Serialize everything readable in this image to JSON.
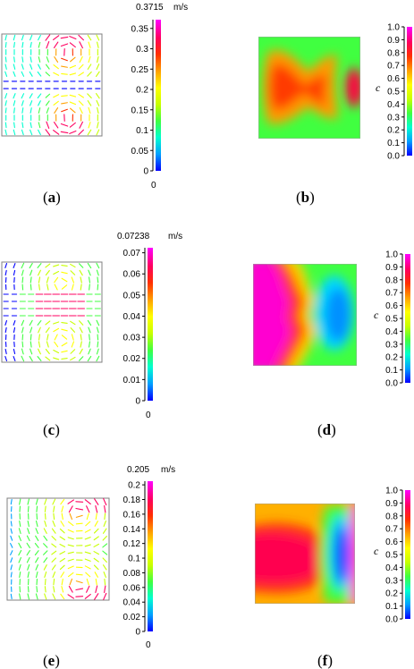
{
  "figure": {
    "panels": [
      {
        "id": "a",
        "label_open": "(",
        "letter": "a",
        "label_close": ")",
        "kind": "velocity"
      },
      {
        "id": "b",
        "label_open": "(",
        "letter": "b",
        "label_close": ")",
        "kind": "concentration"
      },
      {
        "id": "c",
        "label_open": "(",
        "letter": "c",
        "label_close": ")",
        "kind": "velocity"
      },
      {
        "id": "d",
        "label_open": "(",
        "letter": "d",
        "label_close": ")",
        "kind": "concentration"
      },
      {
        "id": "e",
        "label_open": "(",
        "letter": "e",
        "label_close": ")",
        "kind": "velocity"
      },
      {
        "id": "f",
        "label_open": "(",
        "letter": "f",
        "label_close": ")",
        "kind": "concentration"
      }
    ]
  },
  "chart_data": [
    {
      "type": "heatmap",
      "panel": "a",
      "colorbar_max_label": "0.3715",
      "unit": "m/s",
      "zero_label": "0",
      "ticks": [
        "0.35",
        "0.3",
        "0.25",
        "0.2",
        "0.15",
        "0.1",
        "0.05",
        "0"
      ],
      "tick_values": [
        0.35,
        0.3,
        0.25,
        0.2,
        0.15,
        0.1,
        0.05,
        0
      ],
      "vmax": 0.3715
    },
    {
      "type": "heatmap",
      "panel": "b",
      "axis_label": "c",
      "ticks": [
        "1.0",
        "0.9",
        "0.8",
        "0.7",
        "0.6",
        "0.5",
        "0.4",
        "0.3",
        "0.2",
        "0.1",
        "0.0"
      ],
      "tick_values": [
        1,
        0.9,
        0.8,
        0.7,
        0.6,
        0.5,
        0.4,
        0.3,
        0.2,
        0.1,
        0
      ],
      "vmax": 1.0
    },
    {
      "type": "heatmap",
      "panel": "c",
      "colorbar_max_label": "0.07238",
      "unit": "m/s",
      "zero_label": "0",
      "ticks": [
        "0.07",
        "0.06",
        "0.05",
        "0.04",
        "0.03",
        "0.02",
        "0.01",
        "0"
      ],
      "tick_values": [
        0.07,
        0.06,
        0.05,
        0.04,
        0.03,
        0.02,
        0.01,
        0
      ],
      "vmax": 0.07238
    },
    {
      "type": "heatmap",
      "panel": "d",
      "axis_label": "c",
      "ticks": [
        "1.0",
        "0.9",
        "0.8",
        "0.7",
        "0.6",
        "0.5",
        "0.4",
        "0.3",
        "0.2",
        "0.1",
        "0.0"
      ],
      "tick_values": [
        1,
        0.9,
        0.8,
        0.7,
        0.6,
        0.5,
        0.4,
        0.3,
        0.2,
        0.1,
        0
      ],
      "vmax": 1.0
    },
    {
      "type": "heatmap",
      "panel": "e",
      "colorbar_max_label": "0.205",
      "unit": "m/s",
      "zero_label": "0",
      "ticks": [
        "0.2",
        "0.18",
        "0.16",
        "0.14",
        "0.12",
        "0.1",
        "0.08",
        "0.06",
        "0.04",
        "0.02",
        "0"
      ],
      "tick_values": [
        0.2,
        0.18,
        0.16,
        0.14,
        0.12,
        0.1,
        0.08,
        0.06,
        0.04,
        0.02,
        0
      ],
      "vmax": 0.205
    },
    {
      "type": "heatmap",
      "panel": "f",
      "axis_label": "c",
      "ticks": [
        "1.0",
        "0.9",
        "0.8",
        "0.7",
        "0.6",
        "0.5",
        "0.4",
        "0.3",
        "0.2",
        "0.1",
        "0.0"
      ],
      "tick_values": [
        1,
        0.9,
        0.8,
        0.7,
        0.6,
        0.5,
        0.4,
        0.3,
        0.2,
        0.1,
        0
      ],
      "vmax": 1.0
    }
  ],
  "colormap": [
    "#0000ff",
    "#00a0ff",
    "#00ffd0",
    "#40ff40",
    "#c8ff00",
    "#ffff00",
    "#ffa000",
    "#ff3000",
    "#ff0060",
    "#ff00ff"
  ]
}
